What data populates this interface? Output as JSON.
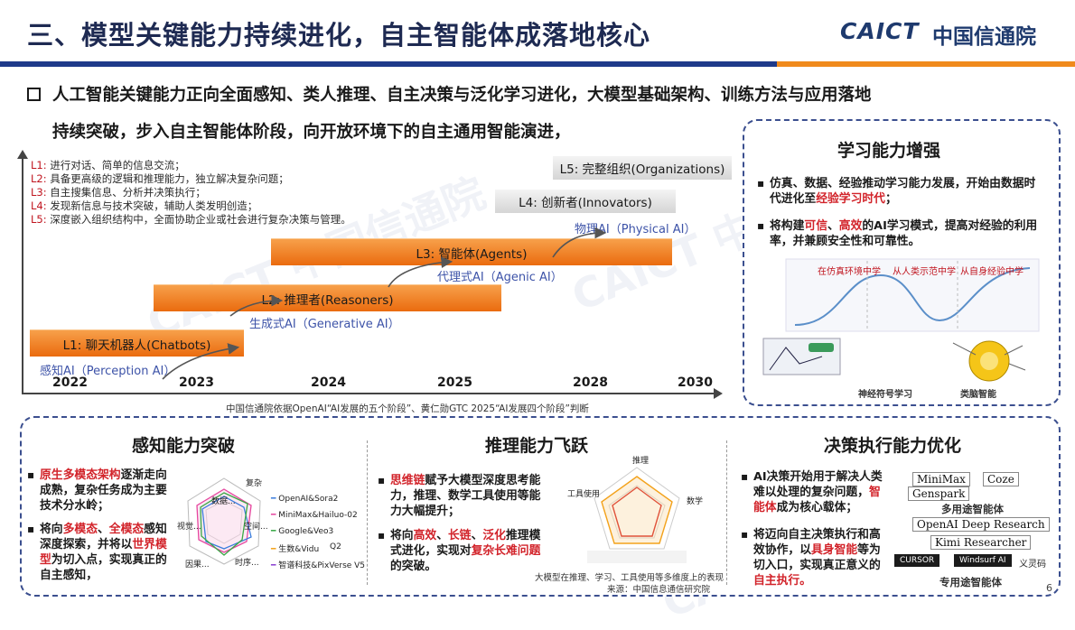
{
  "header": {
    "title": "三、模型关键能力持续进化，自主智能体成落地核心",
    "logo_en": "CAICT",
    "logo_cn": "中国信通院"
  },
  "lead": {
    "line1": "人工智能关键能力正向全面感知、类人推理、自主决策与泛化学习进化，大模型基础架构、训练方法与应用落地",
    "line2": "持续突破，步入自主智能体阶段，向开放环境下的自主通用智能演进，"
  },
  "stages_chart": {
    "levels": [
      {
        "code": "L1:",
        "desc": "进行对话、简单的信息交流；"
      },
      {
        "code": "L2:",
        "desc": "具备更高级的逻辑和推理能力，独立解决复杂问题；"
      },
      {
        "code": "L3:",
        "desc": "自主搜集信息、分析并决策执行；"
      },
      {
        "code": "L4:",
        "desc": "发现新信息与技术突破，辅助人类发明创造；"
      },
      {
        "code": "L5:",
        "desc": "深度嵌入组织结构中，全面协助企业或社会进行复杂决策与管理。"
      }
    ],
    "stage_bars": [
      "L1: 聊天机器人(Chatbots)",
      "L2: 推理者(Reasoners)",
      "L3: 智能体(Agents)",
      "L4: 创新者(Innovators)",
      "L5: 完整组织(Organizations)"
    ],
    "ai_types": [
      "感知AI（Perception AI）",
      "生成式AI（Generative AI）",
      "代理式AI（Agenic AI）",
      "物理AI（Physical AI）"
    ],
    "years": [
      "2022",
      "2023",
      "2024",
      "2025",
      "2028",
      "2030"
    ],
    "caption": "中国信通院依据OpenAI“AI发展的五个阶段”、黄仁勋GTC 2025“AI发展四个阶段”判断"
  },
  "learning_panel": {
    "title": "学习能力增强",
    "bullet1_a": "仿真、数据、经验推动学习能力发展，开始由数据时代进化至",
    "bullet1_red": "经验学习时代",
    "bullet1_b": "；",
    "bullet2_a": "将构建",
    "bullet2_red1": "可信",
    "bullet2_sep": "、",
    "bullet2_red2": "高效",
    "bullet2_b": "的AI学习模式，提高对经验的利用率，并兼顾安全性和可靠性。",
    "fig_labels": [
      "在仿真环境中学",
      "从人类示范中学",
      "从自身经验中学"
    ],
    "fig_cap1": "神经符号学习",
    "fig_cap2": "类脑智能"
  },
  "perception_panel": {
    "title": "感知能力突破",
    "b1_red": "原生多模态架构",
    "b1_rest": "逐渐走向成熟，复杂任务成为主要技术分水岭；",
    "b2_a": "将向",
    "b2_red1": "多模态",
    "b2_sep": "、",
    "b2_red2": "全模态",
    "b2_b": "感知深度探索，并将以",
    "b2_red3": "世界模型",
    "b2_c": "为切入点，实现真正的自主感知，",
    "radar_axes": [
      "数据...",
      "复杂",
      "空间...",
      "时序...",
      "因果...",
      "视觉..."
    ],
    "legend": [
      "OpenAI&Sora2",
      "MiniMax&Hailuo-02",
      "Google&Veo3",
      "生数&Vidu",
      "Q2",
      "智谱科技&PixVerse V5"
    ]
  },
  "reasoning_panel": {
    "title": "推理能力飞跃",
    "b1_red": "思维链",
    "b1_rest": "赋予大模型深度思考能力，推理、数学工具使用等能力大幅提升；",
    "b2_a": "将向",
    "b2_red1": "高效",
    "b2_sep1": "、",
    "b2_red2": "长链",
    "b2_sep2": "、",
    "b2_red3": "泛化",
    "b2_b": "推理模式进化，实现对",
    "b2_red4": "复杂长难问题",
    "b2_c": "的突破。",
    "radar_axes": [
      "推理",
      "数学",
      "工具使用"
    ],
    "caption1": "大模型在推理、学习、工具使用等多维度上的表现",
    "caption2": "来源：中国信息通信研究院"
  },
  "decision_panel": {
    "title": "决策执行能力优化",
    "b1_a": "AI决策开始用于解决人类难以处理的复杂问题，",
    "b1_red": "智能体",
    "b1_b": "成为核心载体；",
    "b2_a": "将迈向自主决策执行和高效协作，以",
    "b2_red1": "具身智能",
    "b2_b": "等为切入口，实现真正意义的",
    "b2_red2": "自主执行。",
    "brands": [
      "MiniMax",
      "Coze",
      "Genspark",
      "OpenAI Deep Research",
      "Kimi Researcher",
      "CURSOR",
      "Windsurf AI",
      "义灵码"
    ],
    "general_label": "多用途智能体",
    "special_label": "专用途智能体"
  },
  "page_number": "6",
  "colors": {
    "navy": "#1e3a8a",
    "orange": "#f08a1c",
    "red": "#d2232a",
    "link_blue": "#3d53a8"
  }
}
